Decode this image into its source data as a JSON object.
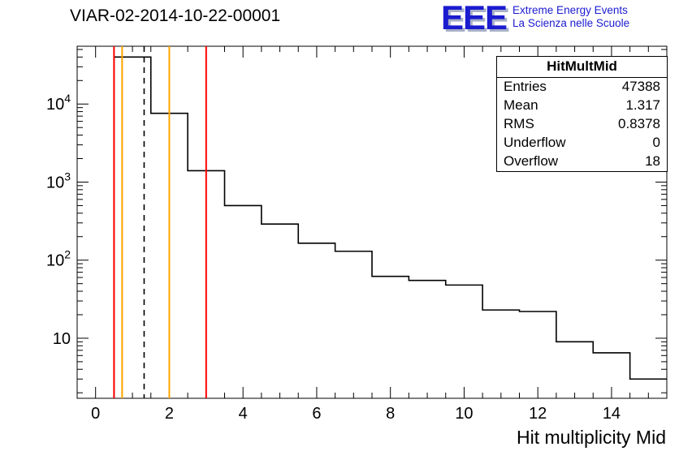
{
  "logo": {
    "acronym": "EEE",
    "line1": "Extreme Energy Events",
    "line2": "La Scienza nelle Scuole",
    "color": "#1b1bd0"
  },
  "stats": {
    "title": "HitMultMid",
    "rows": [
      {
        "label": "Entries",
        "value": "47388"
      },
      {
        "label": "Mean",
        "value": "1.317"
      },
      {
        "label": "RMS",
        "value": "0.8378"
      },
      {
        "label": "Underflow",
        "value": "0"
      },
      {
        "label": "Overflow",
        "value": "18"
      }
    ]
  },
  "chart_data": {
    "type": "bar",
    "title": "VIAR-02-2014-10-22-00001",
    "xlabel": "Hit multiplicity Mid",
    "ylabel": "",
    "y_scale": "log",
    "grid": false,
    "xlim": [
      -0.5,
      15.5
    ],
    "ylim": [
      1.7,
      55000
    ],
    "bin_width": 1,
    "bin_centers": [
      1,
      2,
      3,
      4,
      5,
      6,
      7,
      8,
      9,
      10,
      11,
      12,
      13,
      14,
      15
    ],
    "values": [
      40000,
      7600,
      1400,
      500,
      290,
      165,
      130,
      62,
      55,
      48,
      23,
      22,
      9,
      6.5,
      3
    ],
    "line_color": "#000000",
    "x_ticks": [
      {
        "v": 0,
        "label": "0"
      },
      {
        "v": 2,
        "label": "2"
      },
      {
        "v": 4,
        "label": "4"
      },
      {
        "v": 6,
        "label": "6"
      },
      {
        "v": 8,
        "label": "8"
      },
      {
        "v": 10,
        "label": "10"
      },
      {
        "v": 12,
        "label": "12"
      },
      {
        "v": 14,
        "label": "14"
      }
    ],
    "y_ticks": [
      {
        "v": 10,
        "base": "10",
        "exp": ""
      },
      {
        "v": 100,
        "base": "10",
        "exp": "2"
      },
      {
        "v": 1000,
        "base": "10",
        "exp": "3"
      },
      {
        "v": 10000,
        "base": "10",
        "exp": "4"
      }
    ],
    "vertical_lines": [
      {
        "x": 0.5,
        "color": "#ff0000",
        "style": "solid"
      },
      {
        "x": 0.72,
        "color": "#ffa500",
        "style": "solid"
      },
      {
        "x": 1.317,
        "color": "#000000",
        "style": "dashed"
      },
      {
        "x": 2.0,
        "color": "#ffa500",
        "style": "solid"
      },
      {
        "x": 3.0,
        "color": "#ff0000",
        "style": "solid"
      }
    ]
  }
}
